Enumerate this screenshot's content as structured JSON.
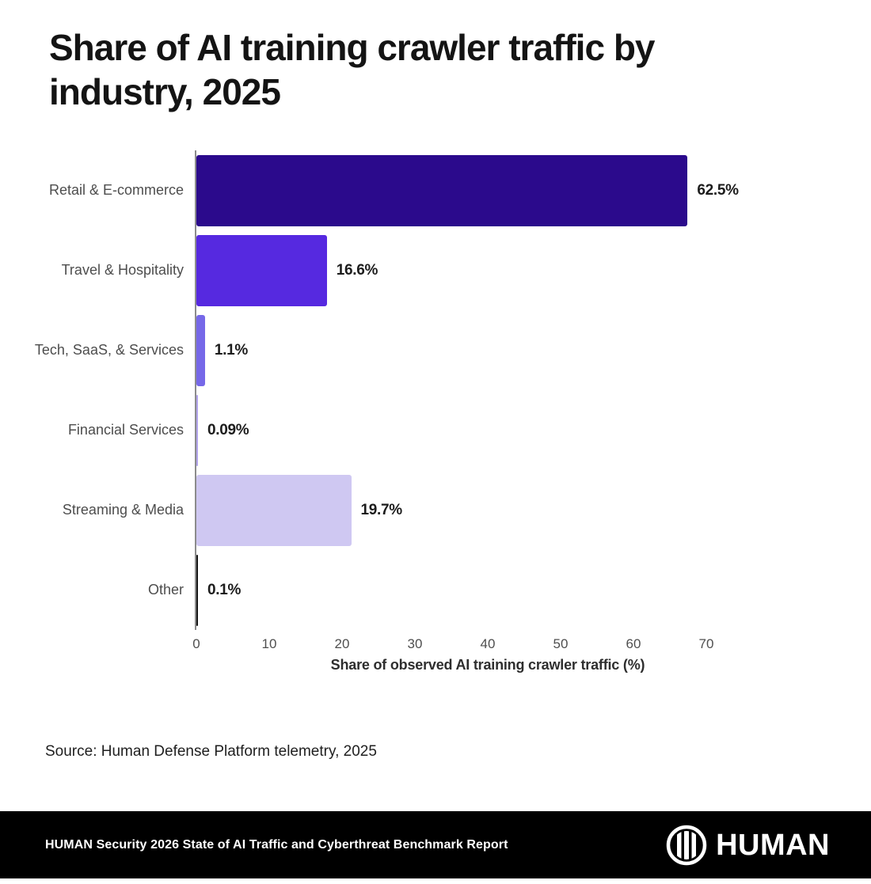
{
  "title_lines": [
    "Share of AI training crawler traffic by",
    "industry, 2025"
  ],
  "chart_data": {
    "type": "bar",
    "orientation": "horizontal",
    "title": "Share of AI training crawler traffic by industry, 2025",
    "categories": [
      "Retail & E-commerce",
      "Travel & Hospitality",
      "Tech, SaaS, & Services",
      "Financial Services",
      "Streaming & Media",
      "Other"
    ],
    "values": [
      62.5,
      16.6,
      1.1,
      0.09,
      19.7,
      0.1
    ],
    "value_labels": [
      "62.5%",
      "16.6%",
      "1.1%",
      "0.09%",
      "19.7%",
      "0.1%"
    ],
    "bar_colors": [
      "#2B0A8C",
      "#5629E0",
      "#7668E8",
      "#B2A4EC",
      "#CFC8F2",
      "#141414"
    ],
    "xlabel": "Share of observed AI training crawler traffic (%)",
    "ylabel": "",
    "xlim": [
      0,
      80
    ],
    "xticks": [
      0,
      10,
      20,
      30,
      40,
      50,
      60,
      70
    ],
    "grid": false,
    "legend": false,
    "axis_color": "#8c8c8c"
  },
  "source": "Source: Human Defense Platform telemetry, 2025",
  "footer": {
    "report_title": "HUMAN Security 2026 State of AI Traffic and Cyberthreat Benchmark Report",
    "brand": "HUMAN",
    "background": "#000000",
    "text_color": "#ffffff"
  }
}
